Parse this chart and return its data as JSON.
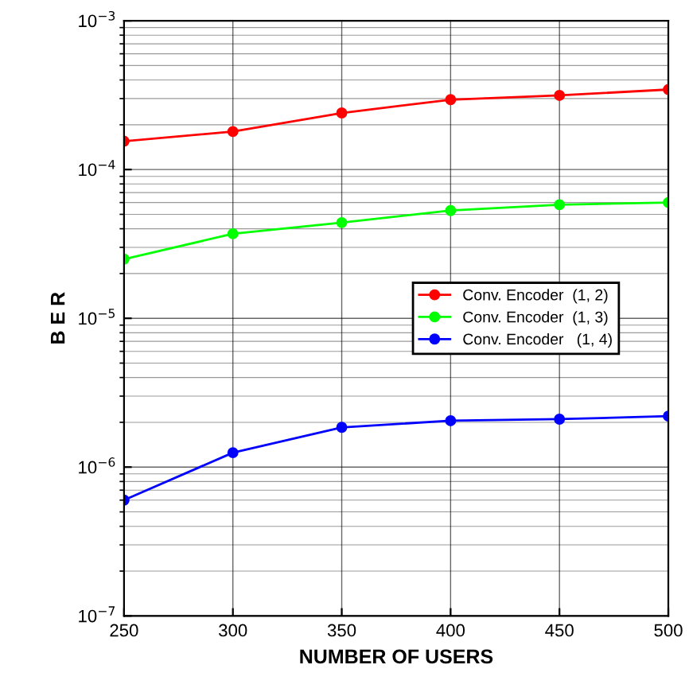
{
  "chart_data": {
    "type": "line",
    "xlabel": "NUMBER OF USERS",
    "ylabel": "B E R",
    "x": [
      250,
      300,
      350,
      400,
      450,
      500
    ],
    "series": [
      {
        "name": "Conv. Encoder  (1, 2)",
        "color": "#ff0000",
        "values": [
          0.000155,
          0.00018,
          0.00024,
          0.000295,
          0.000315,
          0.000345
        ]
      },
      {
        "name": "Conv. Encoder  (1, 3)",
        "color": "#00ff00",
        "values": [
          2.5e-05,
          3.7e-05,
          4.4e-05,
          5.3e-05,
          5.8e-05,
          6e-05
        ]
      },
      {
        "name": "Conv. Encoder   (1, 4)",
        "color": "#0000ff",
        "values": [
          6e-07,
          1.25e-06,
          1.85e-06,
          2.05e-06,
          2.1e-06,
          2.2e-06
        ]
      }
    ],
    "log": true,
    "xlim": [
      250,
      500
    ],
    "xticks": [
      250,
      300,
      350,
      400,
      450,
      500
    ],
    "ylim": [
      1e-07,
      0.001
    ],
    "yticks": [
      {
        "value": 1e-07,
        "label": "10$^{−7}$"
      },
      {
        "value": 1e-06,
        "label": "10$^{−6}$"
      },
      {
        "value": 1e-05,
        "label": "10$^{−5}$"
      },
      {
        "value": 0.0001,
        "label": "10$^{−4}$"
      },
      {
        "value": 0.001,
        "label": "10$^{−3}$"
      }
    ],
    "grid": true,
    "legend": "center",
    "marker": "circle",
    "line_style": "solid"
  }
}
